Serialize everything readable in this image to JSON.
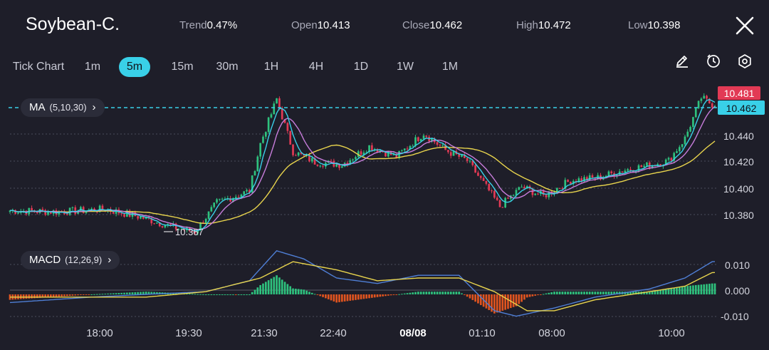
{
  "header": {
    "symbol": "Soybean-C.",
    "stats": [
      {
        "key": "Trend",
        "value": "0.47%"
      },
      {
        "key": "Open",
        "value": "10.413"
      },
      {
        "key": "Close",
        "value": "10.462"
      },
      {
        "key": "High",
        "value": "10.472"
      },
      {
        "key": "Low",
        "value": "10.398"
      }
    ],
    "close_icon": "close-icon"
  },
  "timeframes": [
    "Tick Chart",
    "1m",
    "5m",
    "15m",
    "30m",
    "1H",
    "4H",
    "1D",
    "1W",
    "1M"
  ],
  "active_timeframe": "5m",
  "toolbar_icons": [
    "draw-icon",
    "timer-icon",
    "settings-icon"
  ],
  "indicators": {
    "ma": {
      "name": "MA",
      "params": "(5,10,30)"
    },
    "macd": {
      "name": "MACD",
      "params": "(12,26,9)"
    }
  },
  "price_axis": {
    "ticks": [
      "10.440",
      "10.420",
      "10.400",
      "10.380"
    ]
  },
  "macd_axis": {
    "ticks": [
      "0.010",
      "0.000",
      "-0.010"
    ]
  },
  "time_axis": {
    "ticks": [
      "18:00",
      "19:30",
      "21:30",
      "22:40",
      "08/08",
      "01:10",
      "08:00",
      "10:00"
    ]
  },
  "price_tags": {
    "high_label": "10.481",
    "last_price": "10.462"
  },
  "low_marker": "10.367",
  "colors": {
    "background": "#1e1e29",
    "up": "#2ec27e",
    "down": "#e23a55",
    "accent": "#39d0e8",
    "macd_negative": "#e0541f",
    "ma5": "#39d0e8",
    "ma10": "#c77ddb",
    "ma30": "#e8d44d",
    "dif": "#4f7fd6",
    "dea": "#e8d44d"
  },
  "chart_data": [
    {
      "type": "candlestick",
      "title": "",
      "ylim": [
        10.36,
        10.485
      ],
      "x_ticks": [
        "18:00",
        "19:30",
        "21:30",
        "22:40",
        "08/08",
        "01:10",
        "08:00",
        "10:00"
      ],
      "series": [
        {
          "name": "price",
          "anchors": [
            [
              0,
              10.387
            ],
            [
              18,
              10.386
            ],
            [
              35,
              10.388
            ],
            [
              48,
              10.382
            ],
            [
              62,
              10.373
            ],
            [
              68,
              10.371
            ],
            [
              76,
              10.393
            ],
            [
              88,
              10.402
            ],
            [
              92,
              10.438
            ],
            [
              98,
              10.472
            ],
            [
              104,
              10.432
            ],
            [
              112,
              10.424
            ],
            [
              122,
              10.422
            ],
            [
              132,
              10.436
            ],
            [
              142,
              10.428
            ],
            [
              152,
              10.446
            ],
            [
              160,
              10.433
            ],
            [
              168,
              10.425
            ],
            [
              176,
              10.402
            ],
            [
              180,
              10.39
            ],
            [
              188,
              10.405
            ],
            [
              196,
              10.398
            ],
            [
              206,
              10.41
            ],
            [
              216,
              10.412
            ],
            [
              226,
              10.418
            ],
            [
              236,
              10.422
            ],
            [
              242,
              10.425
            ],
            [
              248,
              10.442
            ],
            [
              254,
              10.473
            ],
            [
              258,
              10.468
            ]
          ]
        }
      ]
    },
    {
      "type": "bar+line",
      "title": "",
      "ylim": [
        -0.011,
        0.017
      ],
      "series": [
        {
          "name": "",
          "anchors": [
            [
              0,
              -0.003
            ],
            [
              30,
              -0.001
            ],
            [
              50,
              0.0
            ],
            [
              72,
              0.001
            ],
            [
              88,
              0.005
            ],
            [
              98,
              0.016
            ],
            [
              108,
              0.013
            ],
            [
              120,
              0.006
            ],
            [
              135,
              0.004
            ],
            [
              150,
              0.007
            ],
            [
              165,
              0.007
            ],
            [
              178,
              -0.006
            ],
            [
              186,
              -0.008
            ],
            [
              200,
              -0.005
            ],
            [
              215,
              -0.001
            ],
            [
              235,
              0.002
            ],
            [
              248,
              0.006
            ],
            [
              258,
              0.012
            ]
          ]
        },
        {
          "name": "",
          "anchors": [
            [
              0,
              -0.001
            ],
            [
              50,
              -0.001
            ],
            [
              72,
              0.001
            ],
            [
              92,
              0.006
            ],
            [
              104,
              0.012
            ],
            [
              120,
              0.009
            ],
            [
              135,
              0.005
            ],
            [
              150,
              0.006
            ],
            [
              165,
              0.006
            ],
            [
              178,
              0.001
            ],
            [
              190,
              -0.006
            ],
            [
              200,
              -0.006
            ],
            [
              215,
              -0.002
            ],
            [
              235,
              0.001
            ],
            [
              248,
              0.003
            ],
            [
              258,
              0.008
            ]
          ]
        }
      ]
    }
  ]
}
